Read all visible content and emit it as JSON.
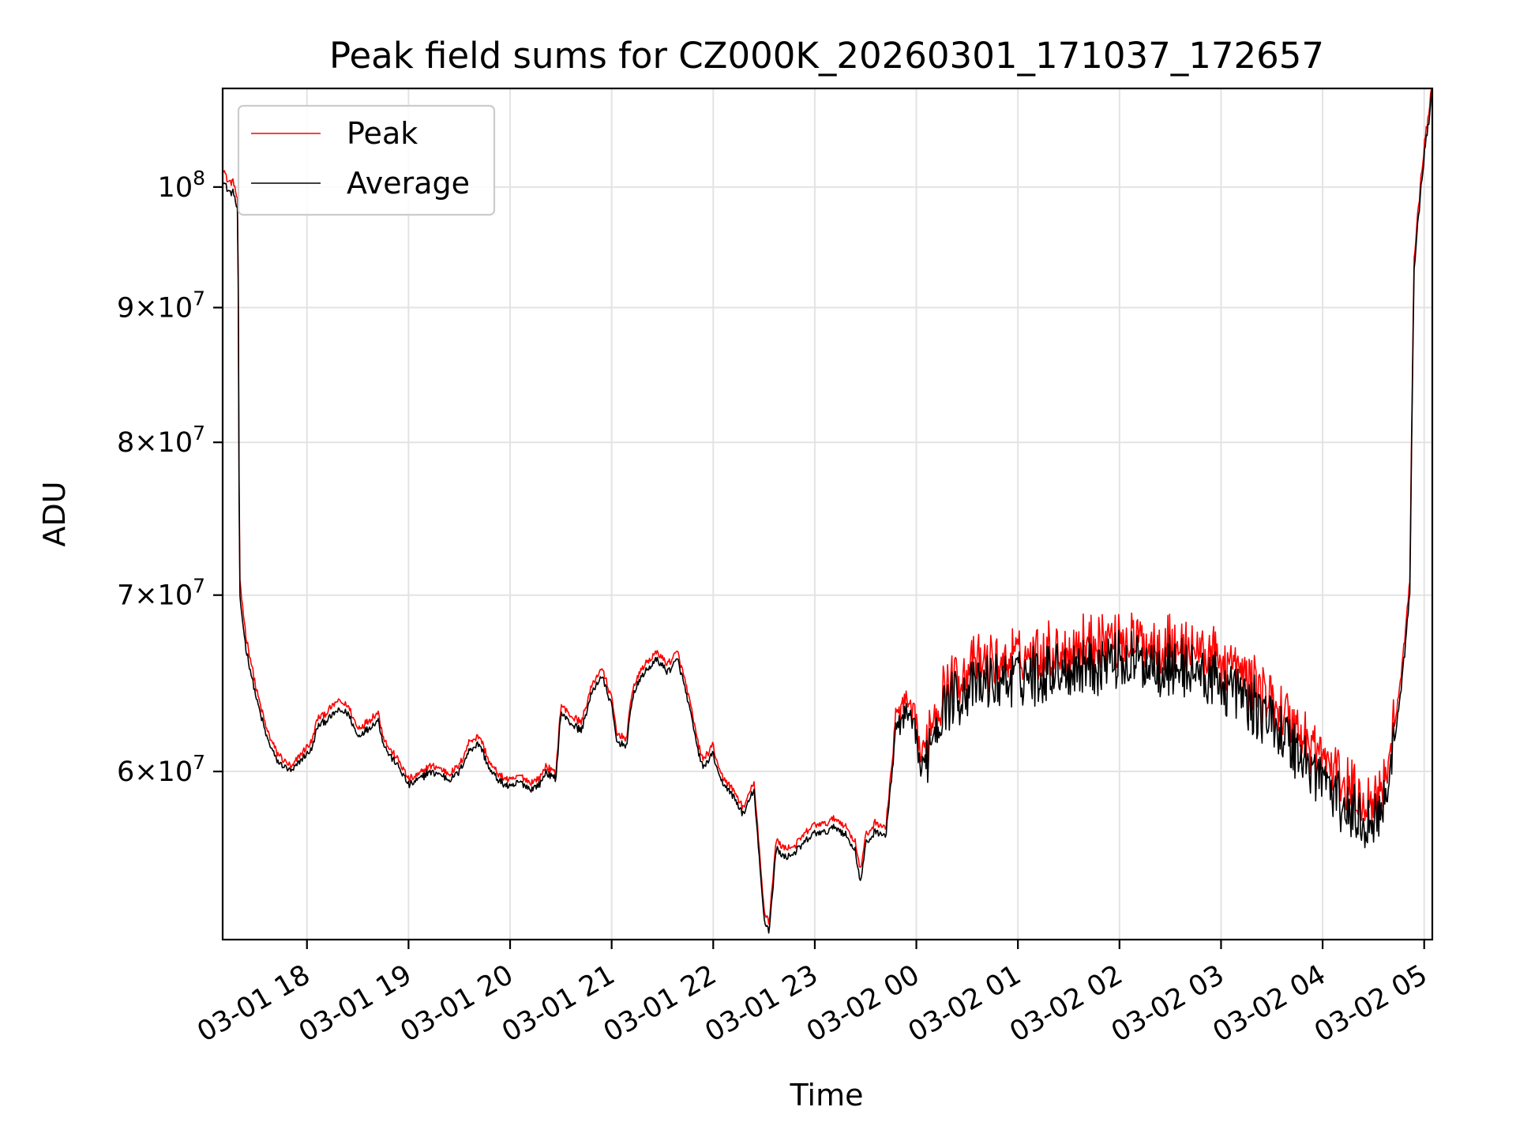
{
  "chart_data": {
    "type": "line",
    "title": "Peak field sums for CZ000K_20260301_171037_172657",
    "xlabel": "Time",
    "ylabel": "ADU",
    "yscale": "log",
    "ylim": [
      51800000,
      109000000
    ],
    "xlim_hours": [
      -0.83,
      11.08
    ],
    "x_ticks": [
      {
        "label": "03-01 18",
        "hour": 0
      },
      {
        "label": "03-01 19",
        "hour": 1
      },
      {
        "label": "03-01 20",
        "hour": 2
      },
      {
        "label": "03-01 21",
        "hour": 3
      },
      {
        "label": "03-01 22",
        "hour": 4
      },
      {
        "label": "03-01 23",
        "hour": 5
      },
      {
        "label": "03-02 00",
        "hour": 6
      },
      {
        "label": "03-02 01",
        "hour": 7
      },
      {
        "label": "03-02 02",
        "hour": 8
      },
      {
        "label": "03-02 03",
        "hour": 9
      },
      {
        "label": "03-02 04",
        "hour": 10
      },
      {
        "label": "03-02 05",
        "hour": 11
      }
    ],
    "y_ticks": [
      {
        "value": 60000000,
        "base": "6",
        "exp": "7"
      },
      {
        "value": 70000000,
        "base": "7",
        "exp": "7"
      },
      {
        "value": 80000000,
        "base": "8",
        "exp": "7"
      },
      {
        "value": 90000000,
        "base": "9",
        "exp": "7"
      },
      {
        "value": 100000000,
        "base": "",
        "exp": "8"
      }
    ],
    "x_units": "hours relative to 03-01 18:00",
    "legend": {
      "location": "upper-left",
      "entries": [
        "Peak",
        "Average"
      ]
    },
    "grid": true,
    "series": [
      {
        "name": "Peak",
        "color": "#ff0000",
        "anchors": [
          [
            -0.83,
            101800000
          ],
          [
            -0.78,
            100500000
          ],
          [
            -0.72,
            100400000
          ],
          [
            -0.68,
            98600000
          ],
          [
            -0.665,
            71000000
          ],
          [
            -0.6,
            67500000
          ],
          [
            -0.5,
            64500000
          ],
          [
            -0.4,
            62300000
          ],
          [
            -0.3,
            61000000
          ],
          [
            -0.15,
            60200000
          ],
          [
            -0.05,
            61000000
          ],
          [
            0.05,
            61600000
          ],
          [
            0.1,
            62800000
          ],
          [
            0.2,
            63200000
          ],
          [
            0.3,
            63800000
          ],
          [
            0.4,
            63600000
          ],
          [
            0.5,
            62300000
          ],
          [
            0.6,
            62700000
          ],
          [
            0.7,
            63200000
          ],
          [
            0.75,
            61900000
          ],
          [
            0.8,
            61300000
          ],
          [
            0.9,
            60600000
          ],
          [
            1.0,
            59600000
          ],
          [
            1.1,
            59800000
          ],
          [
            1.2,
            60300000
          ],
          [
            1.3,
            60200000
          ],
          [
            1.4,
            59900000
          ],
          [
            1.5,
            60300000
          ],
          [
            1.6,
            61600000
          ],
          [
            1.7,
            61900000
          ],
          [
            1.8,
            60400000
          ],
          [
            1.9,
            59800000
          ],
          [
            2.0,
            59500000
          ],
          [
            2.1,
            59800000
          ],
          [
            2.2,
            59400000
          ],
          [
            2.3,
            59700000
          ],
          [
            2.35,
            60300000
          ],
          [
            2.45,
            59900000
          ],
          [
            2.5,
            63600000
          ],
          [
            2.6,
            63000000
          ],
          [
            2.7,
            62600000
          ],
          [
            2.8,
            64600000
          ],
          [
            2.9,
            65700000
          ],
          [
            3.0,
            64000000
          ],
          [
            3.05,
            62000000
          ],
          [
            3.15,
            61800000
          ],
          [
            3.2,
            64400000
          ],
          [
            3.3,
            65700000
          ],
          [
            3.45,
            66600000
          ],
          [
            3.55,
            65900000
          ],
          [
            3.65,
            66600000
          ],
          [
            3.75,
            64300000
          ],
          [
            3.85,
            61500000
          ],
          [
            3.9,
            60600000
          ],
          [
            4.0,
            61400000
          ],
          [
            4.05,
            60100000
          ],
          [
            4.1,
            59700000
          ],
          [
            4.2,
            59000000
          ],
          [
            4.3,
            58100000
          ],
          [
            4.4,
            59500000
          ],
          [
            4.45,
            56200000
          ],
          [
            4.5,
            53200000
          ],
          [
            4.55,
            52600000
          ],
          [
            4.62,
            56500000
          ],
          [
            4.7,
            56100000
          ],
          [
            4.8,
            56200000
          ],
          [
            4.9,
            56800000
          ],
          [
            5.0,
            57300000
          ],
          [
            5.1,
            57300000
          ],
          [
            5.2,
            57600000
          ],
          [
            5.3,
            57200000
          ],
          [
            5.4,
            56400000
          ],
          [
            5.45,
            55000000
          ],
          [
            5.5,
            56700000
          ],
          [
            5.6,
            57400000
          ],
          [
            5.7,
            57100000
          ],
          [
            5.8,
            62900000
          ],
          [
            5.9,
            63800000
          ],
          [
            6.0,
            62500000
          ],
          [
            6.05,
            60500000
          ],
          [
            6.15,
            63000000
          ],
          [
            6.3,
            64800000
          ],
          [
            6.5,
            65600000
          ],
          [
            6.7,
            65900000
          ],
          [
            7.0,
            66300000
          ],
          [
            7.3,
            66700000
          ],
          [
            7.6,
            67000000
          ],
          [
            7.9,
            67400000
          ],
          [
            8.2,
            67300000
          ],
          [
            8.5,
            67100000
          ],
          [
            8.8,
            66600000
          ],
          [
            9.1,
            65800000
          ],
          [
            9.4,
            64400000
          ],
          [
            9.6,
            63300000
          ],
          [
            9.8,
            61900000
          ],
          [
            10.0,
            60900000
          ],
          [
            10.2,
            59400000
          ],
          [
            10.4,
            58500000
          ],
          [
            10.55,
            58800000
          ],
          [
            10.65,
            60600000
          ],
          [
            10.75,
            64000000
          ],
          [
            10.82,
            68000000
          ],
          [
            10.86,
            71200000
          ],
          [
            10.9,
            93800000
          ],
          [
            10.98,
            102000000
          ],
          [
            11.08,
            109500000
          ]
        ]
      },
      {
        "name": "Average",
        "color": "#000000",
        "anchors": [
          [
            -0.83,
            100800000
          ],
          [
            -0.78,
            99700000
          ],
          [
            -0.72,
            99500000
          ],
          [
            -0.68,
            97800000
          ],
          [
            -0.665,
            70000000
          ],
          [
            -0.6,
            66800000
          ],
          [
            -0.5,
            64000000
          ],
          [
            -0.4,
            61900000
          ],
          [
            -0.3,
            60600000
          ],
          [
            -0.15,
            60000000
          ],
          [
            -0.05,
            60700000
          ],
          [
            0.05,
            61200000
          ],
          [
            0.1,
            62400000
          ],
          [
            0.2,
            62800000
          ],
          [
            0.3,
            63300000
          ],
          [
            0.4,
            63200000
          ],
          [
            0.5,
            61900000
          ],
          [
            0.6,
            62300000
          ],
          [
            0.7,
            62800000
          ],
          [
            0.75,
            61600000
          ],
          [
            0.8,
            61000000
          ],
          [
            0.9,
            60300000
          ],
          [
            1.0,
            59300000
          ],
          [
            1.1,
            59600000
          ],
          [
            1.2,
            60000000
          ],
          [
            1.3,
            59900000
          ],
          [
            1.4,
            59600000
          ],
          [
            1.5,
            60000000
          ],
          [
            1.6,
            61200000
          ],
          [
            1.7,
            61500000
          ],
          [
            1.8,
            60100000
          ],
          [
            1.9,
            59500000
          ],
          [
            2.0,
            59200000
          ],
          [
            2.1,
            59500000
          ],
          [
            2.2,
            59100000
          ],
          [
            2.3,
            59400000
          ],
          [
            2.35,
            60000000
          ],
          [
            2.45,
            59600000
          ],
          [
            2.5,
            63200000
          ],
          [
            2.6,
            62600000
          ],
          [
            2.7,
            62200000
          ],
          [
            2.8,
            64200000
          ],
          [
            2.9,
            65300000
          ],
          [
            3.0,
            63600000
          ],
          [
            3.05,
            61600000
          ],
          [
            3.15,
            61400000
          ],
          [
            3.2,
            64000000
          ],
          [
            3.3,
            65300000
          ],
          [
            3.45,
            66200000
          ],
          [
            3.55,
            65500000
          ],
          [
            3.65,
            66200000
          ],
          [
            3.75,
            63900000
          ],
          [
            3.85,
            61100000
          ],
          [
            3.9,
            60200000
          ],
          [
            4.0,
            61000000
          ],
          [
            4.05,
            59800000
          ],
          [
            4.1,
            59400000
          ],
          [
            4.2,
            58700000
          ],
          [
            4.3,
            57800000
          ],
          [
            4.4,
            59100000
          ],
          [
            4.45,
            55800000
          ],
          [
            4.5,
            52800000
          ],
          [
            4.55,
            52200000
          ],
          [
            4.62,
            56100000
          ],
          [
            4.7,
            55700000
          ],
          [
            4.8,
            55900000
          ],
          [
            4.9,
            56400000
          ],
          [
            5.0,
            56900000
          ],
          [
            5.1,
            56900000
          ],
          [
            5.2,
            57200000
          ],
          [
            5.3,
            56800000
          ],
          [
            5.4,
            56000000
          ],
          [
            5.45,
            54400000
          ],
          [
            5.5,
            56300000
          ],
          [
            5.6,
            57000000
          ],
          [
            5.7,
            56700000
          ],
          [
            5.8,
            62300000
          ],
          [
            5.9,
            63200000
          ],
          [
            6.0,
            61900000
          ],
          [
            6.05,
            59900000
          ],
          [
            6.15,
            62300000
          ],
          [
            6.3,
            64000000
          ],
          [
            6.5,
            64700000
          ],
          [
            6.7,
            65000000
          ],
          [
            7.0,
            65400000
          ],
          [
            7.3,
            65800000
          ],
          [
            7.6,
            66100000
          ],
          [
            7.9,
            66400000
          ],
          [
            8.2,
            66300000
          ],
          [
            8.5,
            66100000
          ],
          [
            8.8,
            65600000
          ],
          [
            9.1,
            64800000
          ],
          [
            9.4,
            63400000
          ],
          [
            9.6,
            62300000
          ],
          [
            9.8,
            60900000
          ],
          [
            10.0,
            59900000
          ],
          [
            10.2,
            58400000
          ],
          [
            10.4,
            57600000
          ],
          [
            10.55,
            57900000
          ],
          [
            10.65,
            59800000
          ],
          [
            10.75,
            63300000
          ],
          [
            10.82,
            67300000
          ],
          [
            10.86,
            70500000
          ],
          [
            10.9,
            93000000
          ],
          [
            10.98,
            101200000
          ],
          [
            11.08,
            108800000
          ]
        ]
      }
    ]
  }
}
